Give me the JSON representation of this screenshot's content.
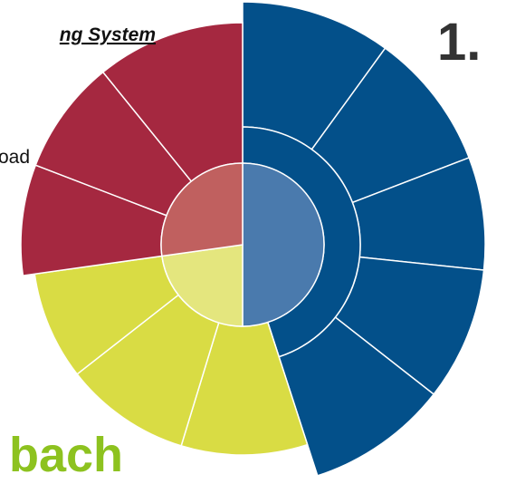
{
  "header": {
    "title_fragment": "ng System",
    "number": "1."
  },
  "body": {
    "line_fragment": "oad"
  },
  "footer": {
    "word_fragment": "bach"
  }
}
